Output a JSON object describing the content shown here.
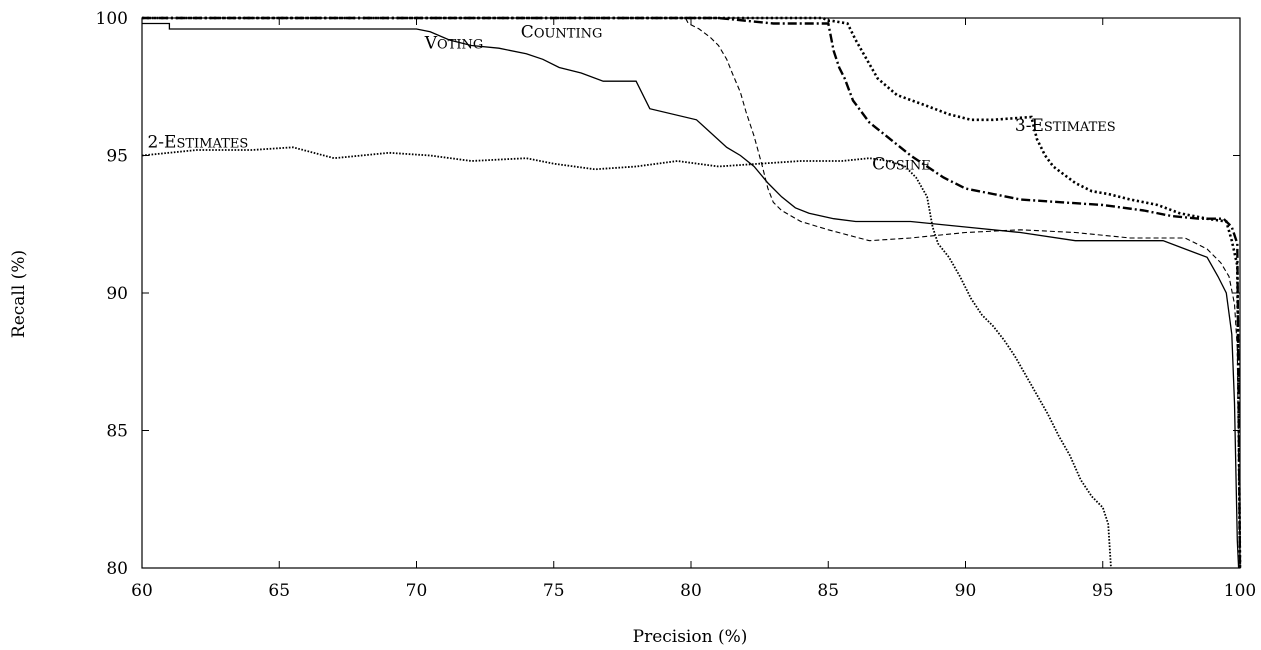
{
  "chart_data": {
    "type": "line",
    "title": "",
    "xlabel": "Precision (%)",
    "ylabel": "Recall (%)",
    "xlim": [
      60,
      100
    ],
    "ylim": [
      80,
      100
    ],
    "xticks": [
      "60",
      "65",
      "70",
      "75",
      "80",
      "85",
      "90",
      "95",
      "100"
    ],
    "yticks": [
      "80",
      "85",
      "90",
      "95",
      "100"
    ],
    "grid": false,
    "legend": "none (series labeled inline)",
    "series": [
      {
        "name": "Voting",
        "style": "solid",
        "x": [
          60.0,
          61.0,
          61.0,
          70.0,
          70.5,
          71.2,
          72.0,
          73.0,
          74.0,
          74.6,
          75.2,
          76.0,
          76.8,
          78.0,
          78.5,
          80.2,
          81.3,
          81.8,
          82.3,
          82.8,
          83.3,
          83.8,
          84.3,
          85.2,
          86.0,
          88.0,
          90.0,
          92.0,
          94.0,
          96.0,
          97.2,
          98.0,
          98.8,
          99.2,
          99.5,
          99.7,
          99.8,
          99.85,
          99.9,
          99.95
        ],
        "y": [
          99.8,
          99.8,
          99.6,
          99.6,
          99.5,
          99.2,
          99.0,
          98.9,
          98.7,
          98.5,
          98.2,
          98.0,
          97.7,
          97.7,
          96.7,
          96.3,
          95.3,
          95.0,
          94.6,
          94.0,
          93.5,
          93.1,
          92.9,
          92.7,
          92.6,
          92.6,
          92.4,
          92.2,
          91.9,
          91.9,
          91.9,
          91.6,
          91.3,
          90.6,
          90.0,
          88.5,
          86.0,
          83.5,
          81.0,
          80.0
        ]
      },
      {
        "name": "Counting",
        "style": "dashed",
        "x": [
          60.0,
          79.8,
          79.9,
          80.3,
          80.7,
          81.0,
          81.3,
          81.5,
          81.8,
          82.0,
          82.3,
          82.6,
          82.8,
          83.0,
          83.3,
          84.0,
          85.0,
          86.5,
          88.0,
          90.0,
          92.0,
          94.0,
          96.0,
          98.0,
          98.8,
          99.3,
          99.6,
          99.8,
          99.9,
          100.0
        ],
        "y": [
          100.0,
          100.0,
          99.8,
          99.6,
          99.3,
          99.0,
          98.5,
          98.0,
          97.3,
          96.6,
          95.7,
          94.6,
          93.8,
          93.3,
          93.0,
          92.6,
          92.3,
          91.9,
          92.0,
          92.2,
          92.3,
          92.2,
          92.0,
          92.0,
          91.6,
          91.1,
          90.6,
          89.6,
          88.0,
          80.0
        ]
      },
      {
        "name": "Cosine",
        "style": "dashdot",
        "x": [
          60.0,
          81.0,
          83.0,
          85.0,
          85.2,
          85.4,
          85.6,
          85.9,
          86.2,
          86.5,
          87.0,
          87.5,
          88.0,
          88.6,
          89.2,
          90.0,
          91.0,
          92.0,
          93.5,
          95.0,
          96.5,
          97.5,
          98.5,
          99.4,
          99.7,
          99.9,
          100.0
        ],
        "y": [
          100.0,
          100.0,
          99.8,
          99.8,
          98.8,
          98.2,
          97.8,
          97.0,
          96.6,
          96.2,
          95.8,
          95.4,
          95.0,
          94.6,
          94.2,
          93.8,
          93.6,
          93.4,
          93.3,
          93.2,
          93.0,
          92.8,
          92.7,
          92.7,
          92.4,
          91.8,
          80.0
        ]
      },
      {
        "name": "3-Estimates",
        "style": "dotted-bold",
        "x": [
          60.0,
          81.0,
          84.8,
          85.0,
          85.1,
          85.7,
          86.0,
          86.4,
          86.8,
          87.5,
          88.6,
          89.4,
          90.2,
          91.0,
          92.4,
          92.6,
          92.9,
          93.2,
          93.6,
          94.0,
          94.6,
          95.2,
          96.0,
          97.0,
          97.8,
          98.8,
          99.5,
          99.7,
          99.9,
          100.0
        ],
        "y": [
          100.0,
          100.0,
          100.0,
          99.9,
          99.9,
          99.8,
          99.2,
          98.5,
          97.8,
          97.2,
          96.8,
          96.5,
          96.3,
          96.3,
          96.4,
          95.6,
          95.0,
          94.6,
          94.3,
          94.0,
          93.7,
          93.6,
          93.4,
          93.2,
          92.9,
          92.7,
          92.6,
          91.9,
          91.0,
          80.0
        ]
      },
      {
        "name": "2-Estimates",
        "style": "dotted",
        "x": [
          60.0,
          62.0,
          64.0,
          65.5,
          67.0,
          69.0,
          70.5,
          72.0,
          74.0,
          75.0,
          76.5,
          78.0,
          79.5,
          81.0,
          82.5,
          84.0,
          85.5,
          86.5,
          87.2,
          87.8,
          88.2,
          88.6,
          88.8,
          89.0,
          89.4,
          89.8,
          90.2,
          90.6,
          91.0,
          91.4,
          91.8,
          92.2,
          92.6,
          93.0,
          93.4,
          93.8,
          94.2,
          94.6,
          95.0,
          95.2,
          95.3
        ],
        "y": [
          95.0,
          95.2,
          95.2,
          95.3,
          94.9,
          95.1,
          95.0,
          94.8,
          94.9,
          94.7,
          94.5,
          94.6,
          94.8,
          94.6,
          94.7,
          94.8,
          94.8,
          94.9,
          94.8,
          94.6,
          94.2,
          93.5,
          92.4,
          91.8,
          91.3,
          90.6,
          89.8,
          89.2,
          88.8,
          88.3,
          87.7,
          87.0,
          86.3,
          85.6,
          84.8,
          84.1,
          83.2,
          82.6,
          82.2,
          81.6,
          80.0
        ]
      }
    ],
    "annotations": [
      {
        "name": "Voting",
        "small_caps": "VOTING",
        "x": 70.3,
        "y": 98.9
      },
      {
        "name": "Counting",
        "small_caps": "COUNTING",
        "x": 73.8,
        "y": 99.3
      },
      {
        "name": "Cosine",
        "small_caps": "COSINE",
        "x": 86.6,
        "y": 94.5
      },
      {
        "name": "3-Estimates",
        "small_caps": "3-ESTIMATES",
        "x": 91.8,
        "y": 95.9
      },
      {
        "name": "2-Estimates",
        "small_caps": "2-ESTIMATES",
        "x": 60.2,
        "y": 95.3
      }
    ]
  }
}
